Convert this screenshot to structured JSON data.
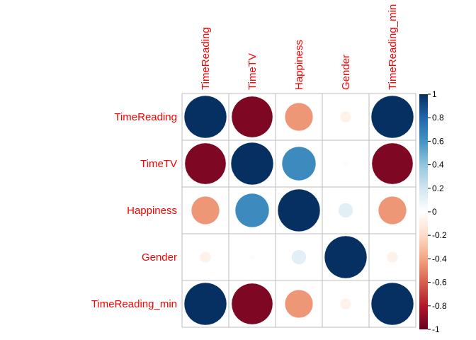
{
  "chart_data": {
    "type": "heatmap",
    "title": "",
    "variables": [
      "TimeReading",
      "TimeTV",
      "Happiness",
      "Gender",
      "TimeReading_min"
    ],
    "matrix": [
      [
        1.0,
        -0.94,
        -0.44,
        -0.07,
        1.0
      ],
      [
        -0.94,
        1.0,
        0.64,
        -0.02,
        -0.94
      ],
      [
        -0.44,
        0.64,
        1.0,
        0.12,
        -0.44
      ],
      [
        -0.07,
        -0.02,
        0.12,
        1.0,
        -0.07
      ],
      [
        1.0,
        -0.94,
        -0.44,
        -0.07,
        1.0
      ]
    ],
    "glyph": "circle",
    "label_color": "#ff0000",
    "colorbar": {
      "range": [
        -1,
        1
      ],
      "ticks": [
        "1",
        "0.8",
        "0.6",
        "0.4",
        "0.2",
        "0",
        "-0.2",
        "-0.4",
        "-0.6",
        "-0.8",
        "-1"
      ],
      "tick_values": [
        1,
        0.8,
        0.6,
        0.4,
        0.2,
        0,
        -0.2,
        -0.4,
        -0.6,
        -0.8,
        -1
      ],
      "colors": [
        "#67001f",
        "#b2182b",
        "#d6604d",
        "#f4a582",
        "#fddbc7",
        "#ffffff",
        "#d1e5f0",
        "#92c5de",
        "#4393c3",
        "#2166ac",
        "#053061"
      ]
    }
  }
}
